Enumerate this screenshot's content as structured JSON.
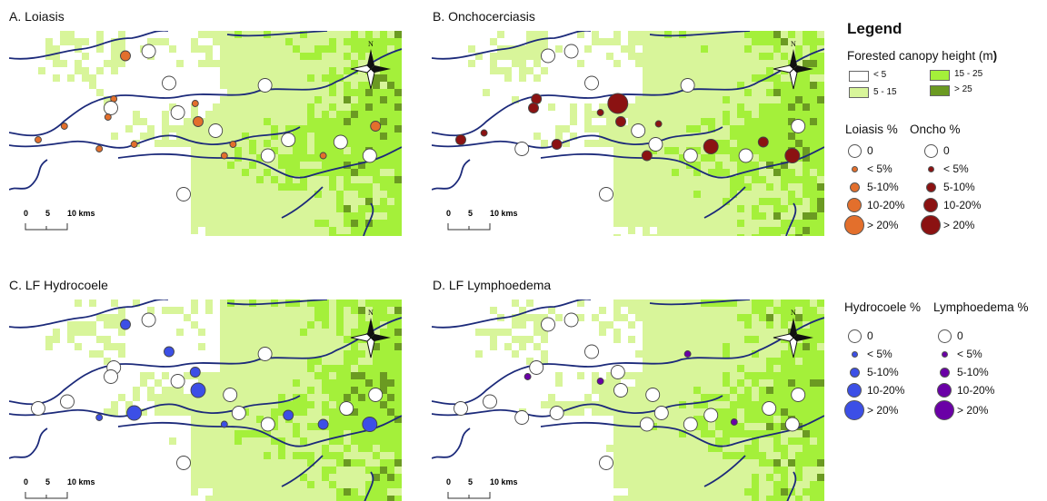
{
  "panels": [
    {
      "id": "A",
      "title": "A. Loiasis",
      "color": "#e36f2c",
      "sites": [
        {
          "lon": 40,
          "lat": 77,
          "level": 2
        },
        {
          "lon": 48,
          "lat": 79,
          "level": 0
        },
        {
          "lon": 55,
          "lat": 65,
          "level": 0
        },
        {
          "lon": 88,
          "lat": 64,
          "level": 0
        },
        {
          "lon": 36,
          "lat": 58,
          "level": 1
        },
        {
          "lon": 35,
          "lat": 54,
          "level": 0
        },
        {
          "lon": 34,
          "lat": 50,
          "level": 1
        },
        {
          "lon": 64,
          "lat": 56,
          "level": 1
        },
        {
          "lon": 58,
          "lat": 52,
          "level": 0
        },
        {
          "lon": 65,
          "lat": 48,
          "level": 2
        },
        {
          "lon": 19,
          "lat": 46,
          "level": 1
        },
        {
          "lon": 71,
          "lat": 44,
          "level": 0
        },
        {
          "lon": 10,
          "lat": 40,
          "level": 1
        },
        {
          "lon": 31,
          "lat": 36,
          "level": 1
        },
        {
          "lon": 43,
          "lat": 38,
          "level": 1
        },
        {
          "lon": 77,
          "lat": 38,
          "level": 1
        },
        {
          "lon": 74,
          "lat": 33,
          "level": 1
        },
        {
          "lon": 89,
          "lat": 33,
          "level": 0
        },
        {
          "lon": 96,
          "lat": 40,
          "level": 0
        },
        {
          "lon": 126,
          "lat": 46,
          "level": 2
        },
        {
          "lon": 108,
          "lat": 33,
          "level": 1
        },
        {
          "lon": 114,
          "lat": 39,
          "level": 0
        },
        {
          "lon": 124,
          "lat": 33,
          "level": 0
        },
        {
          "lon": 60,
          "lat": 16,
          "level": 0
        }
      ]
    },
    {
      "id": "B",
      "title": "B. Onchocerciasis",
      "color": "#8b1212",
      "sites": [
        {
          "lon": 40,
          "lat": 77,
          "level": 0
        },
        {
          "lon": 48,
          "lat": 79,
          "level": 0
        },
        {
          "lon": 55,
          "lat": 65,
          "level": 0
        },
        {
          "lon": 88,
          "lat": 64,
          "level": 0
        },
        {
          "lon": 36,
          "lat": 58,
          "level": 2
        },
        {
          "lon": 35,
          "lat": 54,
          "level": 2
        },
        {
          "lon": 64,
          "lat": 56,
          "level": 4
        },
        {
          "lon": 58,
          "lat": 52,
          "level": 1
        },
        {
          "lon": 65,
          "lat": 48,
          "level": 2
        },
        {
          "lon": 78,
          "lat": 47,
          "level": 1
        },
        {
          "lon": 71,
          "lat": 44,
          "level": 0
        },
        {
          "lon": 10,
          "lat": 40,
          "level": 2
        },
        {
          "lon": 18,
          "lat": 43,
          "level": 1
        },
        {
          "lon": 31,
          "lat": 36,
          "level": 0
        },
        {
          "lon": 43,
          "lat": 38,
          "level": 2
        },
        {
          "lon": 77,
          "lat": 38,
          "level": 0
        },
        {
          "lon": 74,
          "lat": 33,
          "level": 2
        },
        {
          "lon": 89,
          "lat": 33,
          "level": 0
        },
        {
          "lon": 96,
          "lat": 37,
          "level": 3
        },
        {
          "lon": 126,
          "lat": 46,
          "level": 0
        },
        {
          "lon": 108,
          "lat": 33,
          "level": 0
        },
        {
          "lon": 114,
          "lat": 39,
          "level": 2
        },
        {
          "lon": 124,
          "lat": 33,
          "level": 3
        },
        {
          "lon": 60,
          "lat": 16,
          "level": 0
        }
      ]
    },
    {
      "id": "C",
      "title": "C. LF Hydrocoele",
      "color": "#3c4fe6",
      "sites": [
        {
          "lon": 40,
          "lat": 77,
          "level": 2
        },
        {
          "lon": 48,
          "lat": 79,
          "level": 0
        },
        {
          "lon": 55,
          "lat": 65,
          "level": 2
        },
        {
          "lon": 88,
          "lat": 64,
          "level": 0
        },
        {
          "lon": 36,
          "lat": 58,
          "level": 0
        },
        {
          "lon": 35,
          "lat": 54,
          "level": 0
        },
        {
          "lon": 64,
          "lat": 56,
          "level": 2
        },
        {
          "lon": 58,
          "lat": 52,
          "level": 0
        },
        {
          "lon": 65,
          "lat": 48,
          "level": 3
        },
        {
          "lon": 76,
          "lat": 46,
          "level": 0
        },
        {
          "lon": 10,
          "lat": 40,
          "level": 0
        },
        {
          "lon": 20,
          "lat": 43,
          "level": 0
        },
        {
          "lon": 31,
          "lat": 36,
          "level": 1
        },
        {
          "lon": 43,
          "lat": 38,
          "level": 3
        },
        {
          "lon": 79,
          "lat": 38,
          "level": 0
        },
        {
          "lon": 74,
          "lat": 33,
          "level": 1
        },
        {
          "lon": 89,
          "lat": 33,
          "level": 0
        },
        {
          "lon": 96,
          "lat": 37,
          "level": 2
        },
        {
          "lon": 116,
          "lat": 40,
          "level": 0
        },
        {
          "lon": 126,
          "lat": 46,
          "level": 0
        },
        {
          "lon": 108,
          "lat": 33,
          "level": 2
        },
        {
          "lon": 124,
          "lat": 33,
          "level": 3
        },
        {
          "lon": 60,
          "lat": 16,
          "level": 0
        }
      ]
    },
    {
      "id": "D",
      "title": "D. LF Lymphoedema",
      "color": "#6a00a6",
      "sites": [
        {
          "lon": 40,
          "lat": 77,
          "level": 0
        },
        {
          "lon": 48,
          "lat": 79,
          "level": 0
        },
        {
          "lon": 55,
          "lat": 65,
          "level": 0
        },
        {
          "lon": 88,
          "lat": 64,
          "level": 1
        },
        {
          "lon": 36,
          "lat": 58,
          "level": 0
        },
        {
          "lon": 33,
          "lat": 54,
          "level": 1
        },
        {
          "lon": 64,
          "lat": 56,
          "level": 0
        },
        {
          "lon": 58,
          "lat": 52,
          "level": 1
        },
        {
          "lon": 65,
          "lat": 48,
          "level": 0
        },
        {
          "lon": 76,
          "lat": 46,
          "level": 0
        },
        {
          "lon": 10,
          "lat": 40,
          "level": 0
        },
        {
          "lon": 20,
          "lat": 43,
          "level": 0
        },
        {
          "lon": 31,
          "lat": 36,
          "level": 0
        },
        {
          "lon": 43,
          "lat": 38,
          "level": 0
        },
        {
          "lon": 79,
          "lat": 38,
          "level": 0
        },
        {
          "lon": 74,
          "lat": 33,
          "level": 0
        },
        {
          "lon": 89,
          "lat": 33,
          "level": 0
        },
        {
          "lon": 96,
          "lat": 37,
          "level": 0
        },
        {
          "lon": 116,
          "lat": 40,
          "level": 0
        },
        {
          "lon": 126,
          "lat": 46,
          "level": 0
        },
        {
          "lon": 104,
          "lat": 34,
          "level": 1
        },
        {
          "lon": 124,
          "lat": 33,
          "level": 0
        },
        {
          "lon": 60,
          "lat": 16,
          "level": 0
        }
      ]
    }
  ],
  "scalebar": {
    "ticks": [
      "0",
      "5",
      "10 kms"
    ]
  },
  "north_label": "N",
  "legend": {
    "title": "Legend",
    "canopy_title_main": "Forested canopy height (m",
    "canopy_title_paren": ")",
    "canopy_classes": [
      {
        "label": "< 5",
        "color": "#ffffff"
      },
      {
        "label": "5 - 15",
        "color": "#d8f59a"
      },
      {
        "label": "15 - 25",
        "color": "#a4f03a"
      },
      {
        "label": "> 25",
        "color": "#6b9a22"
      }
    ],
    "top_headers": [
      "Loiasis %",
      "Oncho %"
    ],
    "bottom_headers": [
      "Hydrocoele %",
      "Lymphoedema %"
    ],
    "class_labels": [
      "0",
      "< 5%",
      "5-10%",
      "10-20%",
      "> 20%"
    ]
  }
}
